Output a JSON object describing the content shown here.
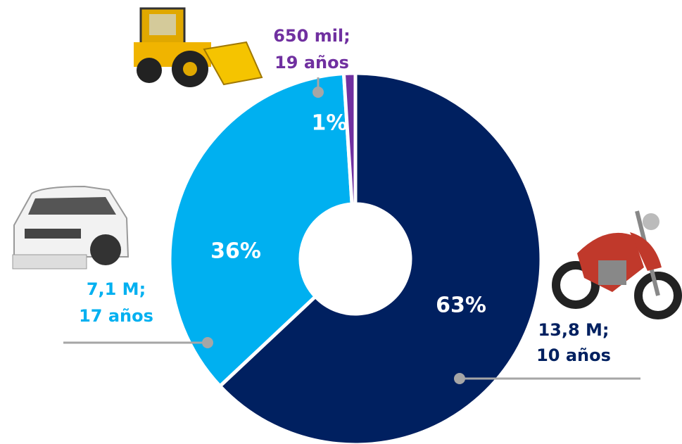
{
  "chart_data": {
    "type": "pie",
    "values": [
      63,
      36,
      1
    ],
    "value_labels": [
      "63%",
      "36%",
      "1%"
    ],
    "colors": [
      "#002060",
      "#00b0f0",
      "#7030a0"
    ],
    "annotations": [
      [
        "13,8 M;",
        "10 años"
      ],
      [
        "7,1 M;",
        "17 años"
      ],
      [
        "650 mil;",
        "19 años"
      ]
    ]
  }
}
